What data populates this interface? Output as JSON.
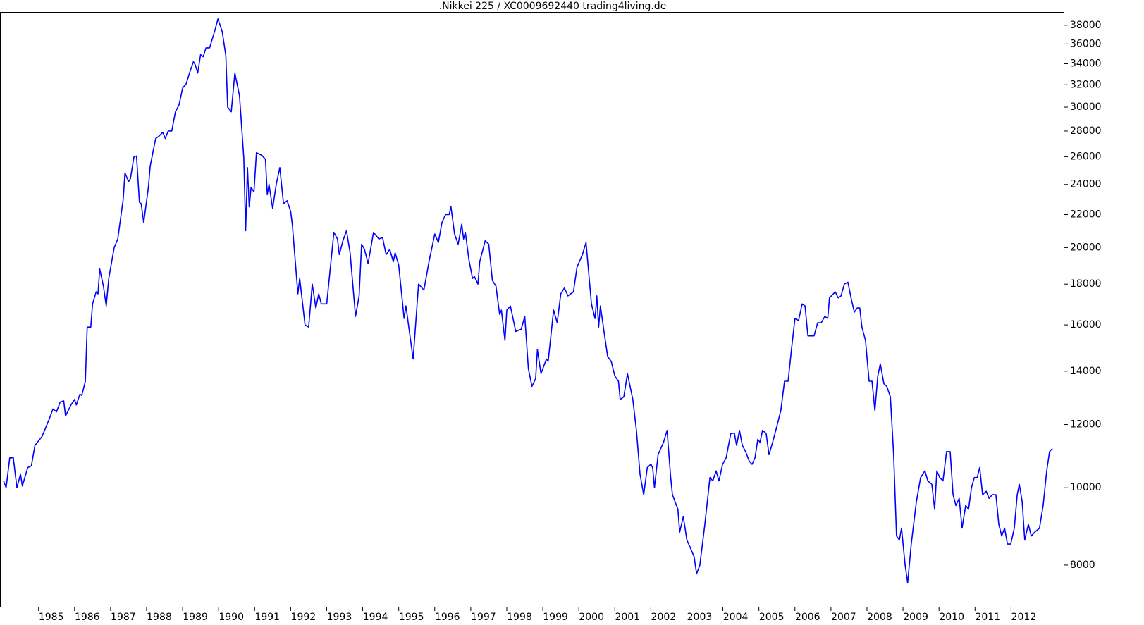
{
  "chart_data": {
    "type": "line",
    "title": ".Nikkei 225 / XC0009692440 trading4living.de",
    "ylog": true,
    "xlim": [
      1983.93,
      2013.48
    ],
    "ylim": [
      7080,
      39400
    ],
    "xticks": [
      1985,
      1986,
      1987,
      1988,
      1989,
      1990,
      1991,
      1992,
      1993,
      1994,
      1995,
      1996,
      1997,
      1998,
      1999,
      2000,
      2001,
      2002,
      2003,
      2004,
      2005,
      2006,
      2007,
      2008,
      2009,
      2010,
      2011,
      2012
    ],
    "yticks": [
      8000,
      10000,
      12000,
      14000,
      16000,
      18000,
      20000,
      22000,
      24000,
      26000,
      28000,
      30000,
      32000,
      34000,
      36000,
      38000
    ],
    "series": [
      {
        "color": "#0000ff",
        "x": [
          1984.03,
          1984.1,
          1984.2,
          1984.3,
          1984.4,
          1984.5,
          1984.55,
          1984.7,
          1984.8,
          1984.9,
          1985.1,
          1985.3,
          1985.4,
          1985.5,
          1985.6,
          1985.7,
          1985.75,
          1985.9,
          1986.0,
          1986.05,
          1986.15,
          1986.2,
          1986.3,
          1986.35,
          1986.45,
          1986.5,
          1986.6,
          1986.65,
          1986.7,
          1986.8,
          1986.88,
          1986.95,
          1987.1,
          1987.2,
          1987.35,
          1987.4,
          1987.5,
          1987.55,
          1987.65,
          1987.72,
          1987.8,
          1987.85,
          1987.92,
          1988.05,
          1988.1,
          1988.25,
          1988.35,
          1988.45,
          1988.52,
          1988.6,
          1988.7,
          1988.8,
          1988.9,
          1989.0,
          1989.1,
          1989.2,
          1989.3,
          1989.35,
          1989.42,
          1989.5,
          1989.57,
          1989.65,
          1989.75,
          1989.9,
          1989.98,
          1990.1,
          1990.2,
          1990.25,
          1990.35,
          1990.45,
          1990.58,
          1990.7,
          1990.75,
          1990.8,
          1990.85,
          1990.9,
          1990.98,
          1991.05,
          1991.2,
          1991.3,
          1991.35,
          1991.4,
          1991.5,
          1991.6,
          1991.7,
          1991.8,
          1991.9,
          1992.0,
          1992.05,
          1992.2,
          1992.25,
          1992.3,
          1992.4,
          1992.5,
          1992.6,
          1992.7,
          1992.78,
          1992.85,
          1993.0,
          1993.2,
          1993.3,
          1993.35,
          1993.45,
          1993.55,
          1993.65,
          1993.8,
          1993.9,
          1993.97,
          1994.05,
          1994.15,
          1994.3,
          1994.45,
          1994.55,
          1994.65,
          1994.75,
          1994.85,
          1994.9,
          1995.0,
          1995.15,
          1995.2,
          1995.4,
          1995.55,
          1995.7,
          1995.85,
          1996.0,
          1996.1,
          1996.2,
          1996.3,
          1996.4,
          1996.45,
          1996.55,
          1996.65,
          1996.75,
          1996.8,
          1996.85,
          1996.95,
          1997.05,
          1997.1,
          1997.2,
          1997.25,
          1997.4,
          1997.5,
          1997.6,
          1997.7,
          1997.8,
          1997.85,
          1997.95,
          1998.0,
          1998.1,
          1998.15,
          1998.25,
          1998.4,
          1998.5,
          1998.6,
          1998.7,
          1998.8,
          1998.85,
          1998.95,
          1999.1,
          1999.15,
          1999.3,
          1999.4,
          1999.5,
          1999.6,
          1999.7,
          1999.85,
          1999.95,
          2000.1,
          2000.2,
          2000.35,
          2000.45,
          2000.5,
          2000.55,
          2000.6,
          2000.7,
          2000.8,
          2000.9,
          2001.0,
          2001.1,
          2001.15,
          2001.25,
          2001.35,
          2001.5,
          2001.6,
          2001.7,
          2001.8,
          2001.9,
          2002.0,
          2002.05,
          2002.1,
          2002.2,
          2002.35,
          2002.45,
          2002.55,
          2002.6,
          2002.75,
          2002.8,
          2002.9,
          2003.0,
          2003.1,
          2003.2,
          2003.27,
          2003.36,
          2003.5,
          2003.64,
          2003.72,
          2003.81,
          2003.89,
          2003.99,
          2004.09,
          2004.22,
          2004.32,
          2004.38,
          2004.46,
          2004.54,
          2004.63,
          2004.73,
          2004.81,
          2004.89,
          2004.97,
          2005.03,
          2005.1,
          2005.2,
          2005.28,
          2005.38,
          2005.49,
          2005.61,
          2005.71,
          2005.81,
          2005.91,
          2006.0,
          2006.1,
          2006.2,
          2006.28,
          2006.36,
          2006.53,
          2006.63,
          2006.73,
          2006.83,
          2006.91,
          2006.96,
          2007.12,
          2007.2,
          2007.28,
          2007.37,
          2007.47,
          2007.57,
          2007.65,
          2007.73,
          2007.8,
          2007.86,
          2007.96,
          2008.06,
          2008.14,
          2008.22,
          2008.3,
          2008.37,
          2008.47,
          2008.55,
          2008.65,
          2008.74,
          2008.82,
          2008.9,
          2008.96,
          2009.06,
          2009.13,
          2009.23,
          2009.37,
          2009.49,
          2009.61,
          2009.69,
          2009.8,
          2009.88,
          2009.94,
          2010.02,
          2010.11,
          2010.21,
          2010.31,
          2010.39,
          2010.47,
          2010.56,
          2010.64,
          2010.74,
          2010.82,
          2010.9,
          2010.98,
          2011.06,
          2011.13,
          2011.21,
          2011.31,
          2011.39,
          2011.48,
          2011.58,
          2011.66,
          2011.74,
          2011.82,
          2011.9,
          2011.99,
          2012.09,
          2012.17,
          2012.23,
          2012.31,
          2012.38,
          2012.48,
          2012.56,
          2012.66,
          2012.79,
          2012.89,
          2012.99,
          2013.07,
          2013.15
        ],
        "values": [
          10200,
          10000,
          10900,
          10900,
          10000,
          10400,
          10050,
          10600,
          10650,
          11300,
          11600,
          12200,
          12550,
          12450,
          12800,
          12850,
          12300,
          12700,
          12900,
          12700,
          13100,
          13050,
          13600,
          15900,
          15900,
          17000,
          17600,
          17500,
          18800,
          17900,
          16900,
          18300,
          20000,
          20500,
          23000,
          24800,
          24200,
          24400,
          26000,
          26050,
          22800,
          22700,
          21500,
          23800,
          25300,
          27400,
          27600,
          27900,
          27400,
          28000,
          28000,
          29600,
          30200,
          31700,
          32100,
          33200,
          34200,
          33900,
          33100,
          34900,
          34700,
          35600,
          35600,
          37500,
          38700,
          37300,
          34800,
          30000,
          29600,
          33100,
          31000,
          25900,
          21000,
          25200,
          22500,
          23800,
          23500,
          26300,
          26100,
          25800,
          23300,
          24000,
          22400,
          24000,
          25200,
          22700,
          22900,
          22200,
          21300,
          17500,
          18300,
          17500,
          16000,
          15900,
          18000,
          16800,
          17500,
          17000,
          17000,
          20900,
          20500,
          19600,
          20400,
          21000,
          19700,
          16400,
          17400,
          20200,
          19900,
          19100,
          20900,
          20500,
          20600,
          19600,
          19900,
          19200,
          19700,
          19000,
          16300,
          16900,
          14500,
          18000,
          17700,
          19300,
          20800,
          20300,
          21500,
          22000,
          22000,
          22500,
          20800,
          20200,
          21400,
          20500,
          20900,
          19300,
          18300,
          18400,
          18000,
          19200,
          20400,
          20200,
          18200,
          17900,
          16500,
          16700,
          15300,
          16700,
          16900,
          16500,
          15700,
          15800,
          16400,
          14100,
          13400,
          13700,
          14900,
          13900,
          14500,
          14400,
          16700,
          16100,
          17500,
          17800,
          17400,
          17600,
          18900,
          19600,
          20300,
          17000,
          16300,
          17400,
          15900,
          16900,
          15700,
          14600,
          14400,
          13800,
          13600,
          12900,
          13000,
          13900,
          12900,
          11800,
          10400,
          9800,
          10600,
          10700,
          10600,
          10000,
          11000,
          11400,
          11800,
          10300,
          9800,
          9400,
          8800,
          9200,
          8600,
          8400,
          8200,
          7800,
          8000,
          9000,
          10300,
          10200,
          10500,
          10200,
          10700,
          10900,
          11700,
          11700,
          11300,
          11800,
          11300,
          11100,
          10800,
          10700,
          10900,
          11500,
          11400,
          11800,
          11700,
          11000,
          11400,
          11900,
          12500,
          13600,
          13600,
          15000,
          16300,
          16200,
          17000,
          16900,
          15500,
          15500,
          16100,
          16100,
          16400,
          16300,
          17300,
          17600,
          17300,
          17400,
          18000,
          18100,
          17200,
          16600,
          16800,
          16800,
          15900,
          15300,
          13600,
          13600,
          12500,
          13800,
          14300,
          13500,
          13400,
          13000,
          11000,
          8700,
          8600,
          8900,
          8000,
          7600,
          8500,
          9600,
          10300,
          10500,
          10200,
          10100,
          9400,
          10500,
          10300,
          10200,
          11100,
          11100,
          9800,
          9500,
          9700,
          8900,
          9500,
          9400,
          10000,
          10300,
          10300,
          10600,
          9800,
          9900,
          9700,
          9800,
          9800,
          9000,
          8700,
          8900,
          8500,
          8500,
          8900,
          9800,
          10100,
          9600,
          8600,
          9000,
          8700,
          8800,
          8900,
          9500,
          10500,
          11100,
          11200
        ]
      }
    ]
  }
}
